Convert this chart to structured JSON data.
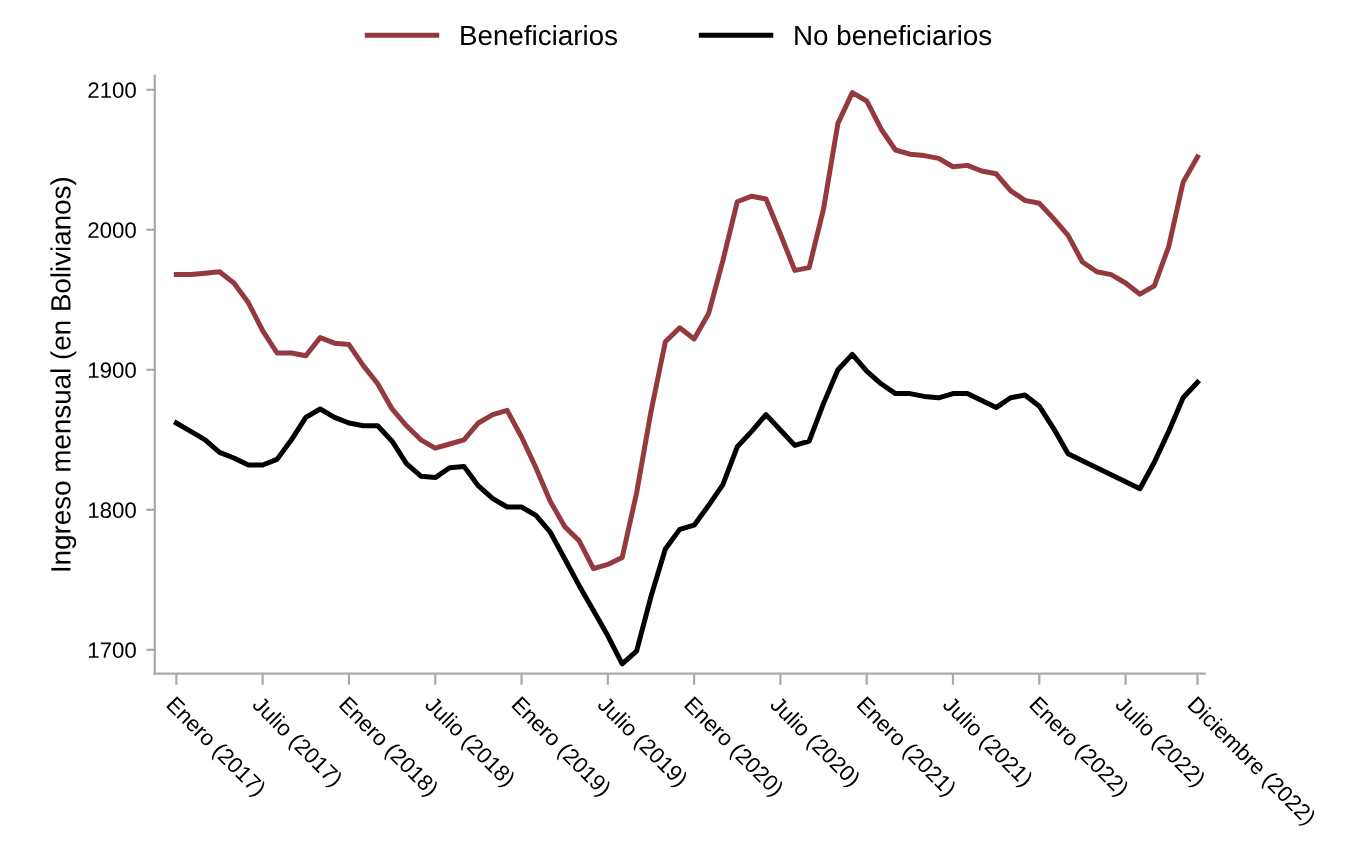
{
  "chart_data": {
    "type": "line",
    "ylabel": "Ingreso mensual (en Bolivianos)",
    "categories": [
      "Enero (2017)",
      null,
      null,
      null,
      null,
      null,
      "Julio (2017)",
      null,
      null,
      null,
      null,
      null,
      "Enero (2018)",
      null,
      null,
      null,
      null,
      null,
      "Julio (2018)",
      null,
      null,
      null,
      null,
      null,
      "Enero (2019)",
      null,
      null,
      null,
      null,
      null,
      "Julio (2019)",
      null,
      null,
      null,
      null,
      null,
      "Enero (2020)",
      null,
      null,
      null,
      null,
      null,
      "Julio (2020)",
      null,
      null,
      null,
      null,
      null,
      "Enero (2021)",
      null,
      null,
      null,
      null,
      null,
      "Julio (2021)",
      null,
      null,
      null,
      null,
      null,
      "Enero (2022)",
      null,
      null,
      null,
      null,
      null,
      "Julio (2022)",
      null,
      null,
      null,
      null,
      "Diciembre (2022)"
    ],
    "series": [
      {
        "name": "Beneficiarios",
        "color": "#943a3e",
        "values": [
          1968,
          1968,
          1969,
          1970,
          1962,
          1948,
          1928,
          1912,
          1912,
          1910,
          1923,
          1919,
          1918,
          1903,
          1890,
          1872,
          1860,
          1850,
          1844,
          1847,
          1850,
          1862,
          1868,
          1871,
          1852,
          1830,
          1806,
          1788,
          1778,
          1758,
          1761,
          1766,
          1812,
          1870,
          1920,
          1930,
          1922,
          1940,
          1978,
          2020,
          2024,
          2022,
          1997,
          1971,
          1973,
          2015,
          2076,
          2098,
          2092,
          2072,
          2057,
          2054,
          2053,
          2051,
          2045,
          2046,
          2042,
          2040,
          2028,
          2021,
          2019,
          2008,
          1996,
          1977,
          1970,
          1968,
          1962,
          1954,
          1960,
          1988,
          2034,
          2052
        ]
      },
      {
        "name": "No beneficiarios",
        "color": "#000000",
        "values": [
          1862,
          1856,
          1850,
          1841,
          1837,
          1832,
          1832,
          1836,
          1850,
          1866,
          1872,
          1866,
          1862,
          1860,
          1860,
          1849,
          1833,
          1824,
          1823,
          1830,
          1831,
          1817,
          1808,
          1802,
          1802,
          1796,
          1784,
          1765,
          1746,
          1728,
          1710,
          1690,
          1699,
          1738,
          1772,
          1786,
          1789,
          1803,
          1818,
          1845,
          1856,
          1868,
          1857,
          1846,
          1849,
          1876,
          1900,
          1911,
          1899,
          1890,
          1883,
          1883,
          1881,
          1880,
          1883,
          1883,
          1878,
          1873,
          1880,
          1882,
          1874,
          1858,
          1840,
          1835,
          1830,
          1825,
          1820,
          1815,
          1834,
          1856,
          1880,
          1891
        ]
      }
    ],
    "ylim": [
      1683,
      2110
    ],
    "yticks": [
      1700,
      1800,
      1900,
      2000,
      2100
    ],
    "legend": "top",
    "grid": false,
    "marker": "none",
    "line_style": "solid"
  }
}
